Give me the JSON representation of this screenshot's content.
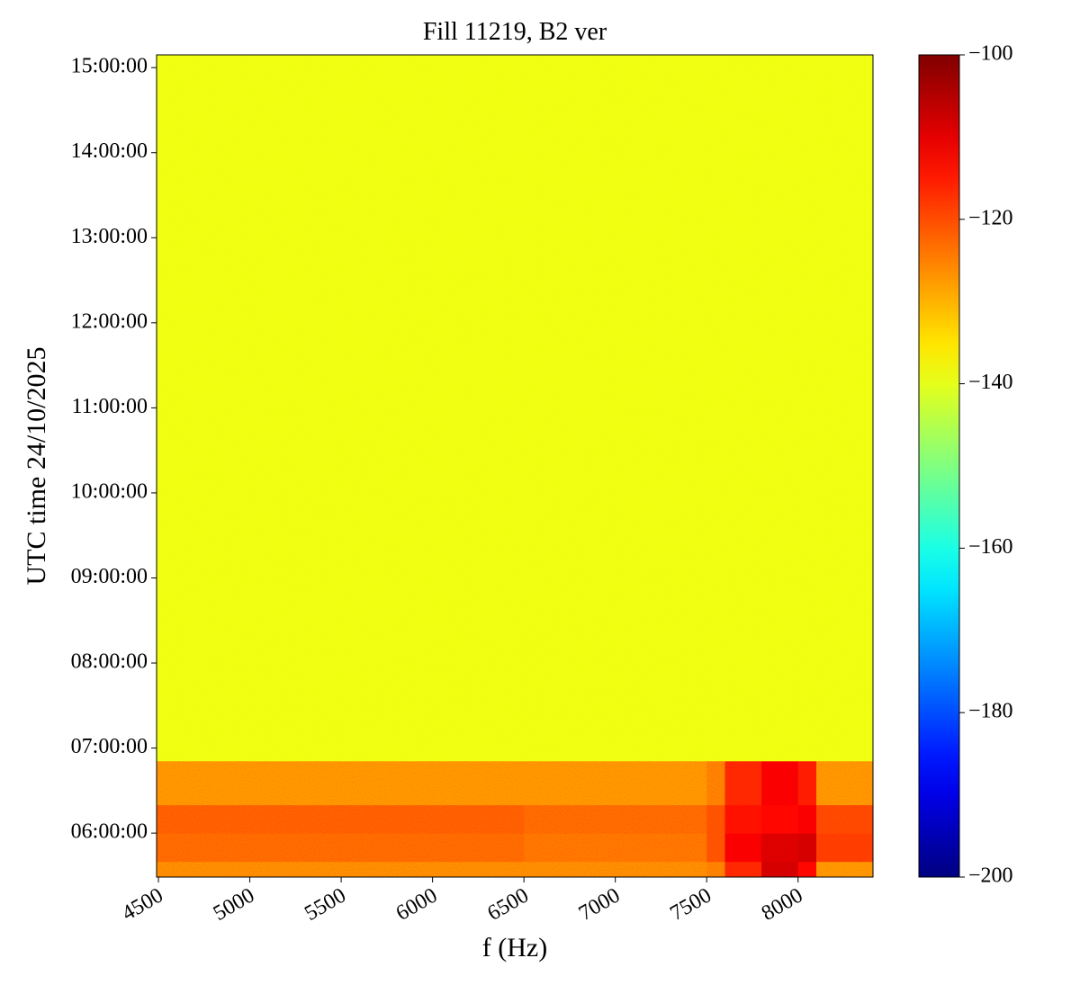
{
  "chart_data": {
    "type": "heatmap",
    "title": "Fill 11219, B2 ver",
    "xlabel": "f (Hz)",
    "ylabel": "UTC time 24/10/2025",
    "xlim": [
      4490,
      8410
    ],
    "xticks": [
      4500,
      5000,
      5500,
      6000,
      6500,
      7000,
      7500,
      8000
    ],
    "ylim": [
      "05:29:00",
      "15:09:00"
    ],
    "yticks": [
      "06:00:00",
      "07:00:00",
      "08:00:00",
      "09:00:00",
      "10:00:00",
      "11:00:00",
      "12:00:00",
      "13:00:00",
      "14:00:00",
      "15:00:00"
    ],
    "x_edges": [
      4490,
      5000,
      5500,
      6000,
      6500,
      7000,
      7500,
      7600,
      7800,
      8000,
      8100,
      8410
    ],
    "y_edges": [
      "05:29:00",
      "05:40:00",
      "06:00:00",
      "06:20:00",
      "06:51:00",
      "15:09:00"
    ],
    "z": [
      [
        -125,
        -125,
        -125,
        -125,
        -125,
        -125,
        -124,
        -116,
        -108,
        -113,
        -126
      ],
      [
        -122,
        -122,
        -122,
        -122,
        -123,
        -123,
        -120,
        -112,
        -109,
        -108,
        -118
      ],
      [
        -121,
        -121,
        -121,
        -121,
        -122,
        -122,
        -120,
        -114,
        -113,
        -112,
        -119
      ],
      [
        -126,
        -126,
        -126,
        -126,
        -126,
        -126,
        -124,
        -116,
        -112,
        -115,
        -126
      ],
      [
        -139,
        -139,
        -139,
        -139,
        -139,
        -139,
        -139,
        -139,
        -139,
        -139,
        -139
      ]
    ],
    "colormap": "jet",
    "clim": [
      -200,
      -100
    ],
    "cticks": [
      {
        "value": -200,
        "label": "−200"
      },
      {
        "value": -180,
        "label": "−180"
      },
      {
        "value": -160,
        "label": "−160"
      },
      {
        "value": -140,
        "label": "−140"
      },
      {
        "value": -120,
        "label": "−120"
      },
      {
        "value": -100,
        "label": "−100"
      }
    ]
  }
}
